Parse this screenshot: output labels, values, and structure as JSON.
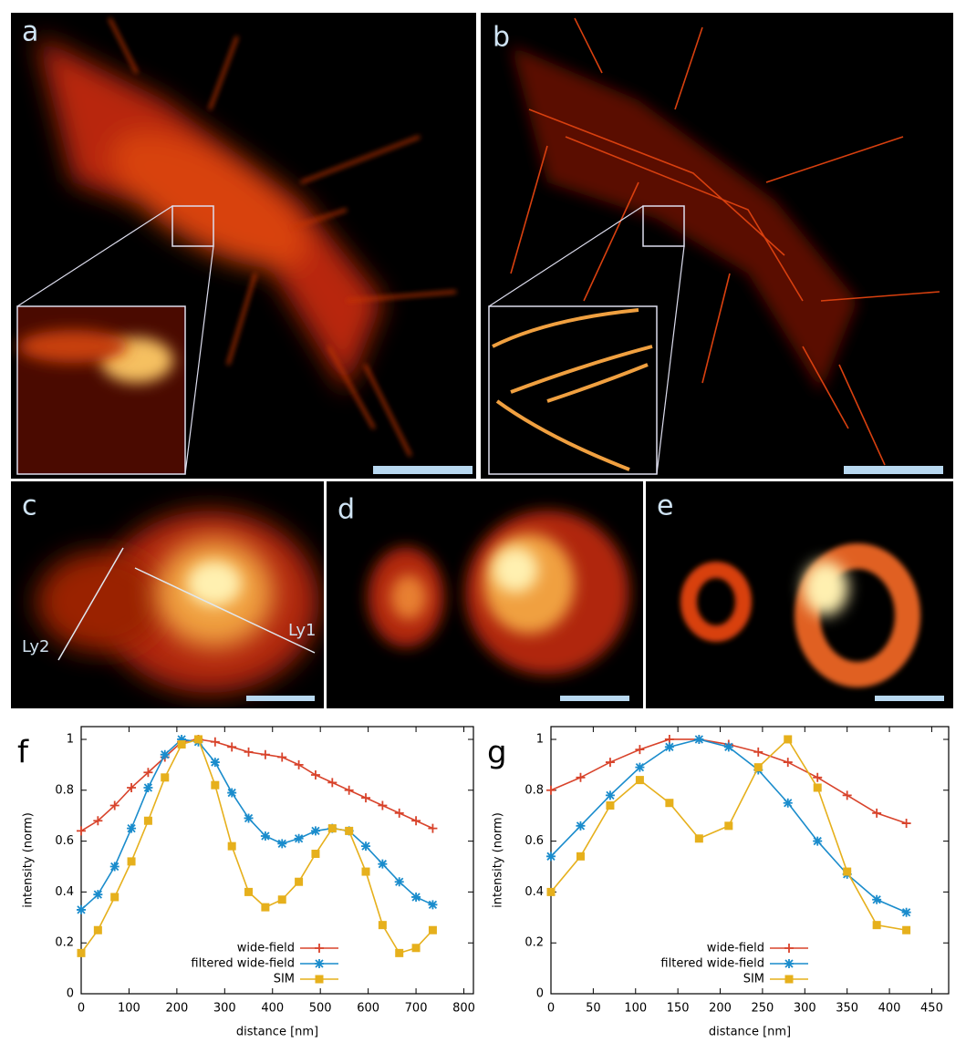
{
  "images": [
    {
      "label": "a"
    },
    {
      "label": "b"
    },
    {
      "label": "c"
    },
    {
      "label": "d"
    },
    {
      "label": "e"
    }
  ],
  "line_labels": [
    "Ly1",
    "Ly2"
  ],
  "chart_data": [
    {
      "type": "line",
      "label": "f",
      "xlabel": "distance [nm]",
      "ylabel": "intensity (norm)",
      "x": [
        0,
        35,
        70,
        105,
        140,
        175,
        210,
        245,
        280,
        315,
        350,
        385,
        420,
        455,
        490,
        525,
        560,
        595,
        630,
        665,
        700,
        735
      ],
      "series": [
        {
          "name": "wide-field",
          "color": "#d8432b",
          "marker": "plus",
          "values": [
            0.64,
            0.68,
            0.74,
            0.81,
            0.87,
            0.93,
            0.99,
            1.0,
            0.99,
            0.97,
            0.95,
            0.94,
            0.93,
            0.9,
            0.86,
            0.83,
            0.8,
            0.77,
            0.74,
            0.71,
            0.68,
            0.65
          ]
        },
        {
          "name": "filtered wide-field",
          "color": "#1a8ccc",
          "marker": "star",
          "values": [
            0.33,
            0.39,
            0.5,
            0.65,
            0.81,
            0.94,
            1.0,
            0.99,
            0.91,
            0.79,
            0.69,
            0.62,
            0.59,
            0.61,
            0.64,
            0.65,
            0.64,
            0.58,
            0.51,
            0.44,
            0.38,
            0.35
          ]
        },
        {
          "name": "SIM",
          "color": "#e6b01c",
          "marker": "square",
          "values": [
            0.16,
            0.25,
            0.38,
            0.52,
            0.68,
            0.85,
            0.98,
            1.0,
            0.82,
            0.58,
            0.4,
            0.34,
            0.37,
            0.44,
            0.55,
            0.65,
            0.64,
            0.48,
            0.27,
            0.16,
            0.18,
            0.25
          ]
        }
      ],
      "xlim": [
        0,
        820
      ],
      "ylim": [
        0,
        1.05
      ],
      "xticks": [
        0,
        100,
        200,
        300,
        400,
        500,
        600,
        700,
        800
      ],
      "yticks": [
        0,
        0.2,
        0.4,
        0.6,
        0.8,
        1
      ],
      "legend": "lower left"
    },
    {
      "type": "line",
      "label": "g",
      "xlabel": "distance [nm]",
      "ylabel": "intensity (norm)",
      "x": [
        0,
        35,
        70,
        105,
        140,
        175,
        210,
        245,
        280,
        315,
        350,
        385,
        420
      ],
      "series": [
        {
          "name": "wide-field",
          "color": "#d8432b",
          "marker": "plus",
          "values": [
            0.8,
            0.85,
            0.91,
            0.96,
            1.0,
            1.0,
            0.98,
            0.95,
            0.91,
            0.85,
            0.78,
            0.71,
            0.67
          ]
        },
        {
          "name": "filtered wide-field",
          "color": "#1a8ccc",
          "marker": "star",
          "values": [
            0.54,
            0.66,
            0.78,
            0.89,
            0.97,
            1.0,
            0.97,
            0.88,
            0.75,
            0.6,
            0.47,
            0.37,
            0.32
          ]
        },
        {
          "name": "SIM",
          "color": "#e6b01c",
          "marker": "square",
          "values": [
            0.4,
            0.54,
            0.74,
            0.84,
            0.75,
            0.61,
            0.66,
            0.89,
            1.0,
            0.81,
            0.48,
            0.27,
            0.25
          ]
        }
      ],
      "xlim": [
        0,
        470
      ],
      "ylim": [
        0,
        1.05
      ],
      "xticks": [
        0,
        50,
        100,
        150,
        200,
        250,
        300,
        350,
        400,
        450
      ],
      "yticks": [
        0,
        0.2,
        0.4,
        0.6,
        0.8,
        1
      ],
      "legend": "lower left"
    }
  ]
}
